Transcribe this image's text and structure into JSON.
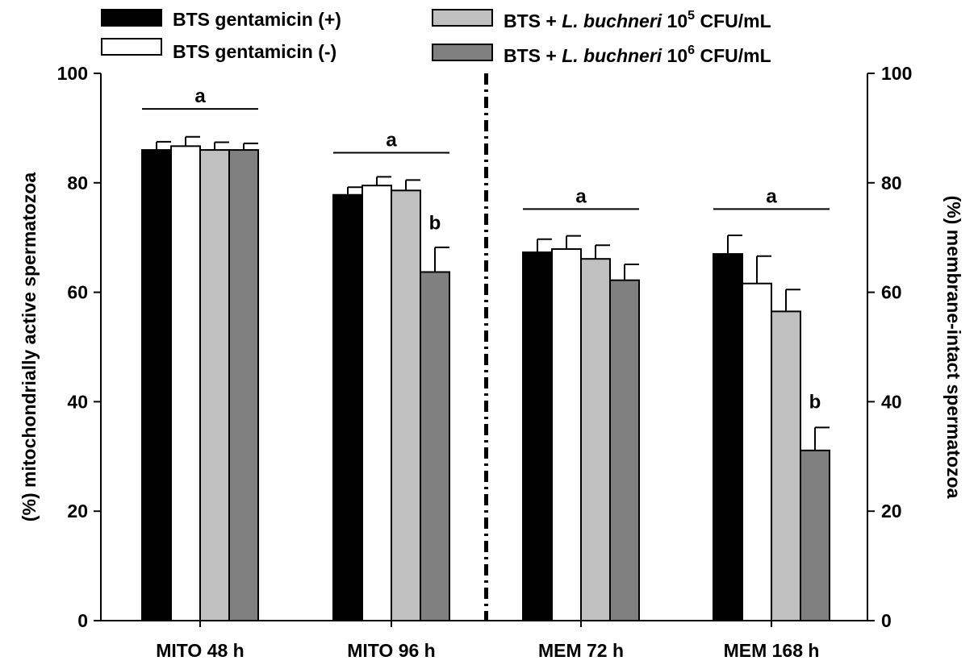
{
  "chart_data": {
    "type": "bar",
    "categories": [
      "MITO 48 h",
      "MITO 96 h",
      "MEM 72 h",
      "MEM 168 h"
    ],
    "series": [
      {
        "name": "BTS gentamicin (+)",
        "color": "#000000",
        "values": [
          86.0,
          77.8,
          67.3,
          67.0
        ],
        "errors": [
          1.5,
          1.4,
          2.4,
          3.4
        ]
      },
      {
        "name": "BTS gentamicin (-)",
        "color": "#ffffff",
        "values": [
          86.7,
          79.5,
          67.9,
          61.6
        ],
        "errors": [
          1.7,
          1.6,
          2.4,
          5.0
        ]
      },
      {
        "name": "BTS + L. buchneri 10⁵ CFU/mL",
        "color": "#c0c0c0",
        "values": [
          86.0,
          78.6,
          66.1,
          56.5
        ],
        "errors": [
          1.4,
          1.9,
          2.5,
          4.0
        ]
      },
      {
        "name": "BTS + L. buchneri 10⁶ CFU/mL",
        "color": "#808080",
        "values": [
          86.0,
          63.7,
          62.2,
          31.1
        ],
        "errors": [
          1.2,
          4.5,
          2.9,
          4.2
        ]
      }
    ],
    "legend": {
      "placement": "top",
      "entries": [
        {
          "plain": "BTS gentamicin (+)"
        },
        {
          "plain": "BTS gentamicin (-)"
        },
        {
          "pre": "BTS + ",
          "italic": "L. buchneri",
          "base": " 10",
          "sup": "5",
          "post": " CFU/mL"
        },
        {
          "pre": "BTS + ",
          "italic": "L. buchneri",
          "base": " 10",
          "sup": "6",
          "post": " CFU/mL"
        }
      ]
    },
    "ylabel_left": "(%) mitochondrially active spermatozoa",
    "ylabel_right": "(%) membrane-intact spermatozoa",
    "ylim": [
      0,
      100
    ],
    "yticks": [
      0,
      20,
      40,
      60,
      80,
      100
    ],
    "annotations": [
      {
        "text": "a",
        "category": 0,
        "from_series": 0,
        "to_series": 3,
        "y": 93.5
      },
      {
        "text": "a",
        "category": 1,
        "from_series": 0,
        "to_series": 3,
        "y": 85.5
      },
      {
        "text": "b",
        "category": 1,
        "series": 3,
        "y": 71.5
      },
      {
        "text": "a",
        "category": 2,
        "from_series": 0,
        "to_series": 3,
        "y": 75.2
      },
      {
        "text": "a",
        "category": 3,
        "from_series": 0,
        "to_series": 3,
        "y": 75.2
      },
      {
        "text": "b",
        "category": 3,
        "series": 3,
        "y": 38.8
      }
    ],
    "separator": {
      "between_categories": [
        1,
        2
      ],
      "style": "dash-dot"
    }
  }
}
